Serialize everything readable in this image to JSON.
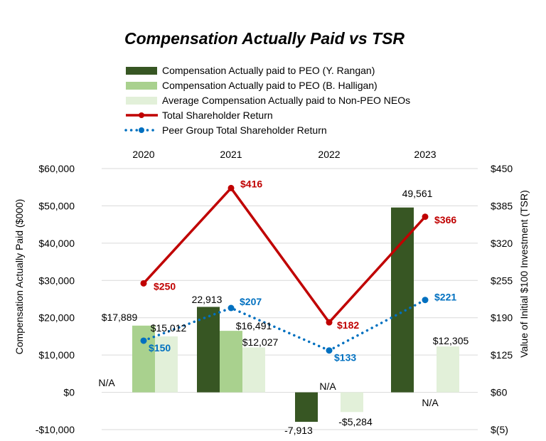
{
  "chart_data": {
    "type": "bar",
    "title": "Compensation Actually Paid vs TSR",
    "categories": [
      "2020",
      "2021",
      "2022",
      "2023"
    ],
    "ylabel": "Compensation Actually Paid ($000)",
    "y2label": "Value of Initial $100 Investment (TSR)",
    "ylim": [
      -10000,
      60000
    ],
    "y2lim": [
      -5,
      450
    ],
    "yticks": [
      -10000,
      0,
      10000,
      20000,
      30000,
      40000,
      50000,
      60000
    ],
    "ytick_labels": [
      "-$10,000",
      "$0",
      "$10,000",
      "$20,000",
      "$30,000",
      "$40,000",
      "$50,000",
      "$60,000"
    ],
    "y2ticks": [
      -5,
      60,
      125,
      190,
      255,
      320,
      385,
      450
    ],
    "y2tick_labels": [
      "$(5)",
      "$60",
      "$125",
      "$190",
      "$255",
      "$320",
      "$385",
      "$450"
    ],
    "legend_position": "top",
    "series": [
      {
        "name": "Compensation Actually paid to PEO (Y. Rangan)",
        "kind": "bar",
        "axis": "left",
        "color": "#375623",
        "values": [
          null,
          22913,
          -7913,
          49561
        ],
        "labels": [
          "N/A",
          "22,913",
          "-7,913",
          "49,561"
        ]
      },
      {
        "name": "Compensation Actually paid to PEO (B. Halligan)",
        "kind": "bar",
        "axis": "left",
        "color": "#a9d18e",
        "values": [
          17889,
          16491,
          null,
          null
        ],
        "labels": [
          "$17,889",
          "$16,491",
          "N/A",
          "N/A"
        ]
      },
      {
        "name": "Average Compensation Actually paid to Non-PEO NEOs",
        "kind": "bar",
        "axis": "left",
        "color": "#e2f0d9",
        "values": [
          15012,
          12027,
          -5284,
          12305
        ],
        "labels": [
          "$15,012",
          "$12,027",
          "-$5,284",
          "$12,305"
        ]
      },
      {
        "name": "Total Shareholder Return",
        "kind": "line",
        "axis": "right",
        "color": "#c00000",
        "style": "solid",
        "values": [
          250,
          416,
          182,
          366
        ],
        "labels": [
          "$250",
          "$416",
          "$182",
          "$366"
        ]
      },
      {
        "name": "Peer Group Total Shareholder Return",
        "kind": "line",
        "axis": "right",
        "color": "#0070c0",
        "style": "dotted",
        "values": [
          150,
          207,
          133,
          221
        ],
        "labels": [
          "$150",
          "$207",
          "$133",
          "$221"
        ]
      }
    ]
  }
}
